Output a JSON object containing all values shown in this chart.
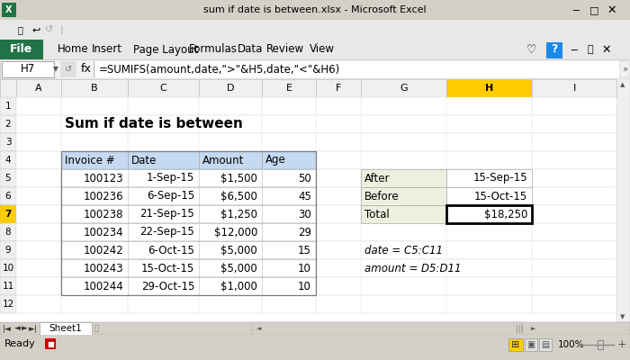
{
  "title_bar": "sum if date is between.xlsx - Microsoft Excel",
  "cell_ref": "H7",
  "formula": "=SUMIFS(amount,date,\">\"&H5,date,\"<\"&H6)",
  "heading": "Sum if date is between",
  "table_headers": [
    "Invoice #",
    "Date",
    "Amount",
    "Age"
  ],
  "table_data": [
    [
      "100123",
      "1-Sep-15",
      "$1,500",
      "50"
    ],
    [
      "100236",
      "6-Sep-15",
      "$6,500",
      "45"
    ],
    [
      "100238",
      "21-Sep-15",
      "$1,250",
      "30"
    ],
    [
      "100234",
      "22-Sep-15",
      "$12,000",
      "29"
    ],
    [
      "100242",
      "6-Oct-15",
      "$5,000",
      "15"
    ],
    [
      "100243",
      "15-Oct-15",
      "$5,000",
      "10"
    ],
    [
      "100244",
      "29-Oct-15",
      "$1,000",
      "10"
    ]
  ],
  "side_labels": [
    "After",
    "Before",
    "Total"
  ],
  "side_values": [
    "15-Sep-15",
    "15-Oct-15",
    "$18,250"
  ],
  "note1": "date = C5:C11",
  "note2": "amount = D5:D11",
  "bg_gray": "#d4d0c8",
  "bg_white": "#ffffff",
  "bg_light": "#f0f0f0",
  "header_blue": "#c5d9f1",
  "side_green": "#ebf1de",
  "file_green": "#217346",
  "col_h_yellow": "#ffcc00",
  "row7_yellow": "#ffcc00",
  "menu_bg": "#e1e1e1",
  "formula_bg": "#f2f2f2"
}
